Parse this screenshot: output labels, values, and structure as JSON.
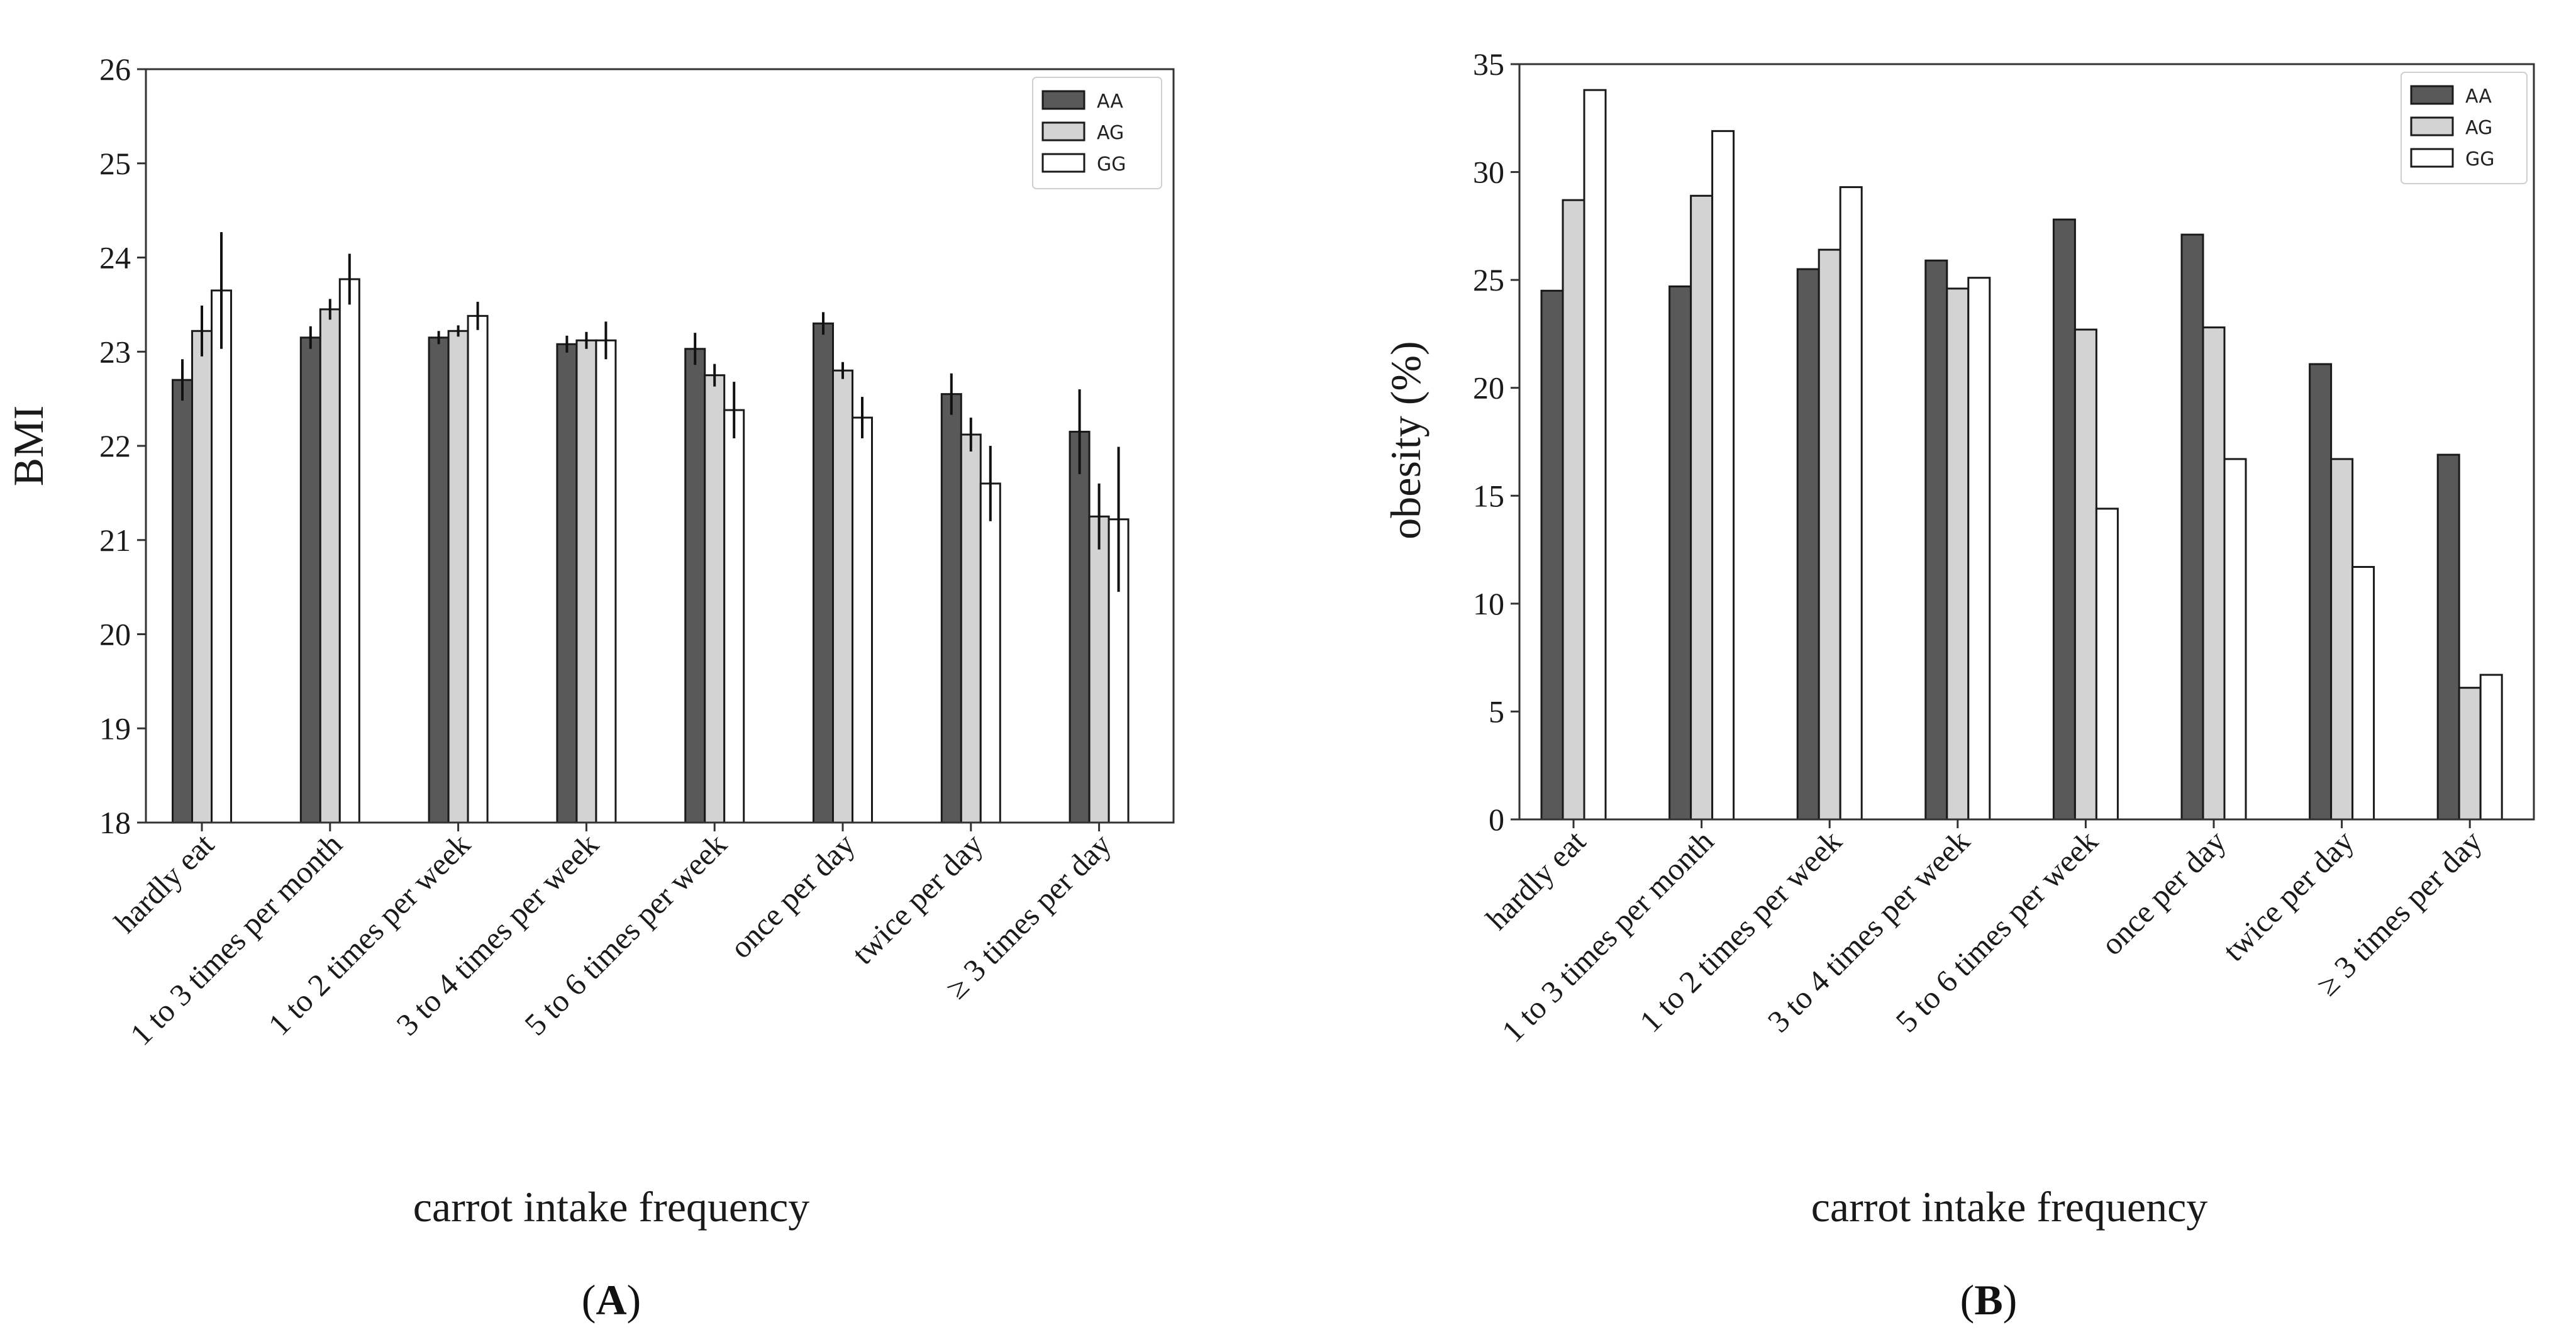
{
  "chart_data": [
    {
      "panel": "A",
      "type": "bar",
      "title": "",
      "xlabel": "carrot intake frequency",
      "ylabel": "BMI",
      "ylim": [
        18,
        26
      ],
      "yticks": [
        18,
        19,
        20,
        21,
        22,
        23,
        24,
        25,
        26
      ],
      "categories": [
        "hardly eat",
        "1 to 3 times per month",
        "1 to 2 times per week",
        "3 to 4 times per week",
        "5 to 6 times per week",
        "once per day",
        "twice per day",
        "≥ 3 times per day"
      ],
      "series": [
        {
          "name": "AA",
          "color": "#595959",
          "values": [
            22.7,
            23.15,
            23.15,
            23.08,
            23.03,
            23.3,
            22.55,
            22.15
          ],
          "err": [
            0.22,
            0.12,
            0.07,
            0.09,
            0.17,
            0.12,
            0.22,
            0.45
          ]
        },
        {
          "name": "AG",
          "color": "#d3d3d3",
          "values": [
            23.22,
            23.45,
            23.22,
            23.12,
            22.75,
            22.8,
            22.12,
            21.25
          ],
          "err": [
            0.27,
            0.11,
            0.06,
            0.09,
            0.12,
            0.09,
            0.18,
            0.35
          ]
        },
        {
          "name": "GG",
          "color": "#ffffff",
          "values": [
            23.65,
            23.77,
            23.38,
            23.12,
            22.38,
            22.3,
            21.6,
            21.22
          ],
          "err": [
            0.62,
            0.27,
            0.15,
            0.2,
            0.3,
            0.22,
            0.4,
            0.77
          ]
        }
      ],
      "legend": "top-right",
      "panel_label": "(A)"
    },
    {
      "panel": "B",
      "type": "bar",
      "title": "",
      "xlabel": "carrot intake frequency",
      "ylabel": "obesity (%)",
      "ylim": [
        0,
        35
      ],
      "yticks": [
        0,
        5,
        10,
        15,
        20,
        25,
        30,
        35
      ],
      "categories": [
        "hardly eat",
        "1 to 3 times per month",
        "1 to 2 times per week",
        "3 to 4 times per week",
        "5 to 6 times per week",
        "once per day",
        "twice per day",
        "≥ 3 times per day"
      ],
      "series": [
        {
          "name": "AA",
          "color": "#595959",
          "values": [
            24.5,
            24.7,
            25.5,
            25.9,
            27.8,
            27.1,
            21.1,
            16.9
          ]
        },
        {
          "name": "AG",
          "color": "#d3d3d3",
          "values": [
            28.7,
            28.9,
            26.4,
            24.6,
            22.7,
            22.8,
            16.7,
            6.1
          ]
        },
        {
          "name": "GG",
          "color": "#ffffff",
          "values": [
            33.8,
            31.9,
            29.3,
            25.1,
            14.4,
            16.7,
            11.7,
            6.7
          ]
        }
      ],
      "legend": "top-right",
      "panel_label": "(B)"
    }
  ]
}
